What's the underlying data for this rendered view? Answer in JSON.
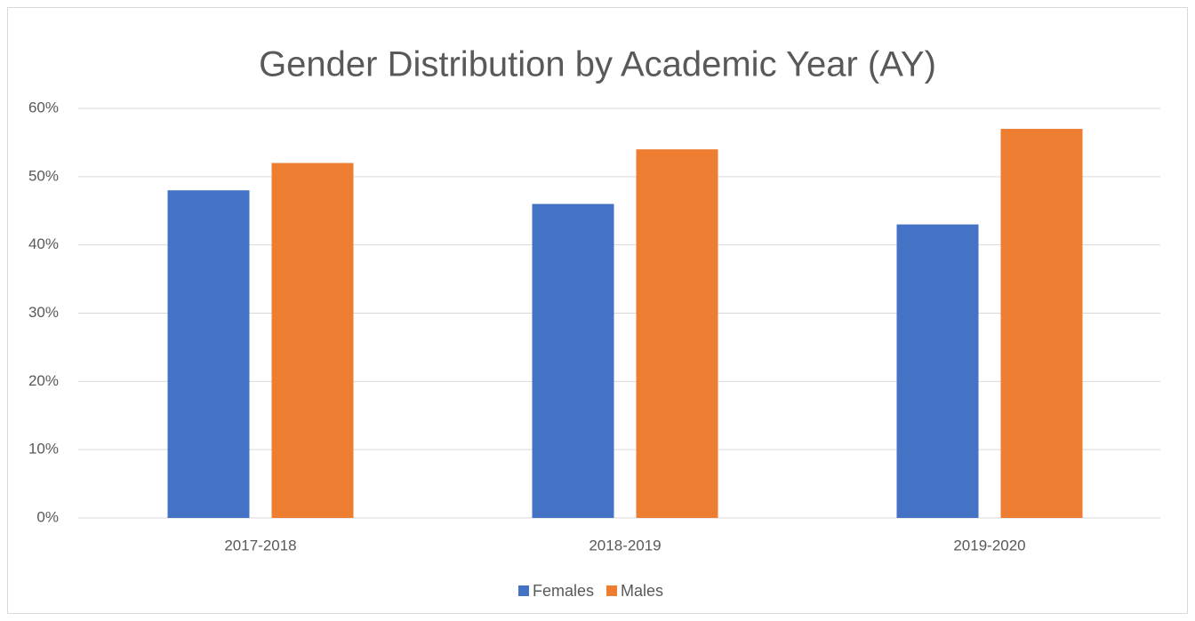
{
  "chart_data": {
    "type": "bar",
    "title": "Gender Distribution by Academic Year (AY)",
    "categories": [
      "2017-2018",
      "2018-2019",
      "2019-2020"
    ],
    "series": [
      {
        "name": "Females",
        "color": "#4472c4",
        "values": [
          48,
          46,
          43
        ]
      },
      {
        "name": "Males",
        "color": "#ed7d31",
        "values": [
          52,
          54,
          57
        ]
      }
    ],
    "ylim": [
      0,
      60
    ],
    "yticks": [
      {
        "value": 0,
        "label": "0%"
      },
      {
        "value": 10,
        "label": "10%"
      },
      {
        "value": 20,
        "label": "20%"
      },
      {
        "value": 30,
        "label": "30%"
      },
      {
        "value": 40,
        "label": "40%"
      },
      {
        "value": 50,
        "label": "50%"
      },
      {
        "value": 60,
        "label": "60%"
      }
    ],
    "grid": true,
    "legend": "bottom"
  }
}
